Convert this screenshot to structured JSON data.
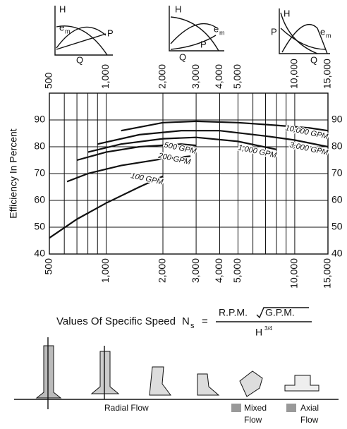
{
  "chart_data": {
    "type": "line",
    "y_label": "Efficiency In Percent",
    "log_x": true,
    "grid": true,
    "xlim": [
      500,
      15000
    ],
    "xticks": [
      500,
      {
        "value": 1000,
        "label": "1,000"
      },
      {
        "value": 2000,
        "label": "2,000"
      },
      {
        "value": 3000,
        "label": "3,000"
      },
      {
        "value": 4000,
        "label": "4,000"
      },
      {
        "value": 5000,
        "label": "5,000"
      },
      {
        "value": 10000,
        "label": "10,000"
      },
      {
        "value": 15000,
        "label": "15,000"
      }
    ],
    "x_minor_ticks": [
      600,
      700,
      800,
      900,
      6000,
      7000,
      8000,
      9000
    ],
    "ylim": [
      40,
      100
    ],
    "yticks": [
      40,
      50,
      60,
      70,
      80,
      90
    ],
    "series": [
      {
        "name": "10,000 GPM",
        "color": "#111",
        "x": [
          1200,
          2000,
          3000,
          5000,
          8000,
          12000,
          15000
        ],
        "values": [
          86,
          89,
          89.5,
          89,
          88,
          87,
          86
        ]
      },
      {
        "name": "3,000 GPM",
        "color": "#111",
        "x": [
          900,
          1500,
          2500,
          4000,
          7000,
          10000,
          15000
        ],
        "values": [
          81,
          84.5,
          86,
          86,
          84,
          82.5,
          80
        ]
      },
      {
        "name": "1,000 GPM",
        "color": "#111",
        "x": [
          800,
          1200,
          2000,
          3000,
          5000,
          8000
        ],
        "values": [
          78,
          81,
          83,
          83.5,
          82,
          79
        ]
      },
      {
        "name": "500 GPM",
        "color": "#111",
        "x": [
          700,
          1000,
          1500,
          2500,
          3000
        ],
        "values": [
          75,
          78,
          80,
          81,
          80.5
        ]
      },
      {
        "name": "200 GPM",
        "color": "#111",
        "x": [
          620,
          800,
          1200,
          2000,
          2800
        ],
        "values": [
          67,
          70,
          73,
          75.5,
          76.5
        ]
      },
      {
        "name": "100 GPM",
        "color": "#111",
        "x": [
          500,
          700,
          1000,
          1500,
          2000
        ],
        "values": [
          46,
          53,
          59,
          65,
          69
        ]
      }
    ]
  },
  "insets": [
    {
      "labels": [
        "H",
        "e",
        "m",
        "P",
        "Q"
      ]
    },
    {
      "labels": [
        "H",
        "e",
        "m",
        "P",
        "Q"
      ]
    },
    {
      "labels": [
        "H",
        "e",
        "m",
        "P",
        "Q"
      ]
    }
  ],
  "formula": {
    "caption": "Values Of Specific Speed",
    "symbol": "N",
    "subscript": "s",
    "equals": "=",
    "numerator_a": "R.P.M.",
    "numerator_b": "G.P.M.",
    "denominator": "H",
    "exponent": "3/4"
  },
  "flow_labels": {
    "radial": "Radial Flow",
    "mixed": [
      "Mixed",
      "Flow"
    ],
    "axial": [
      "Axial",
      "Flow"
    ]
  }
}
